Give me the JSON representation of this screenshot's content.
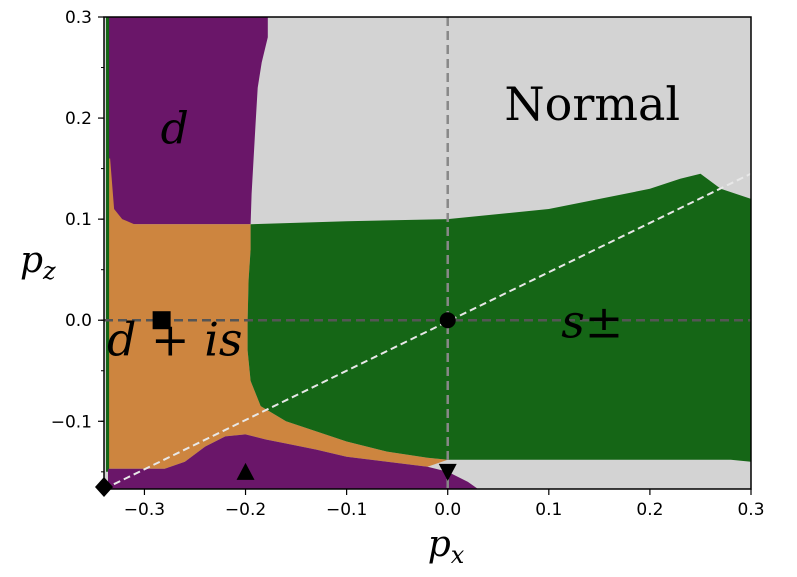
{
  "chart_data": {
    "type": "heatmap",
    "title": "",
    "xlabel": "p",
    "xlabel_subscript": "x",
    "ylabel": "p",
    "ylabel_subscript": "z",
    "xlim": [
      -0.34,
      0.3
    ],
    "ylim": [
      -0.167,
      0.3
    ],
    "xticks": [
      -0.3,
      -0.2,
      -0.1,
      0.0,
      0.1,
      0.2,
      0.3
    ],
    "xtick_labels": [
      "−0.3",
      "−0.2",
      "−0.1",
      "0.0",
      "0.1",
      "0.2",
      "0.3"
    ],
    "yticks": [
      -0.1,
      0.0,
      0.1,
      0.2,
      0.3
    ],
    "ytick_labels": [
      "−0.1",
      "0.0",
      "0.1",
      "0.2",
      "0.3"
    ],
    "phases": [
      {
        "name": "Normal",
        "color": "#d3d3d3",
        "label": "Normal",
        "label_at": [
          0.143,
          0.198
        ],
        "region": [
          [
            -0.34,
            0.3
          ],
          [
            0.3,
            0.3
          ],
          [
            0.3,
            -0.167
          ],
          [
            -0.34,
            -0.167
          ]
        ]
      },
      {
        "name": "d",
        "color": "#6a1669",
        "label": "d",
        "label_at": [
          -0.27,
          0.175
        ],
        "region": [
          [
            -0.336,
            0.3
          ],
          [
            -0.178,
            0.3
          ],
          [
            -0.178,
            0.28
          ],
          [
            -0.184,
            0.255
          ],
          [
            -0.188,
            0.23
          ],
          [
            -0.19,
            0.195
          ],
          [
            -0.192,
            0.16
          ],
          [
            -0.194,
            0.125
          ],
          [
            -0.195,
            0.095
          ],
          [
            -0.336,
            0.095
          ]
        ]
      },
      {
        "name": "d+is",
        "color": "#cd853f",
        "label": "d + is",
        "label_at": [
          -0.27,
          -0.035
        ],
        "region": [
          [
            -0.336,
            0.16
          ],
          [
            -0.334,
            0.16
          ],
          [
            -0.33,
            0.11
          ],
          [
            -0.322,
            0.1
          ],
          [
            -0.31,
            0.095
          ],
          [
            -0.195,
            0.095
          ],
          [
            -0.195,
            0.07
          ],
          [
            -0.197,
            0.04
          ],
          [
            -0.198,
            0.0
          ],
          [
            -0.198,
            -0.03
          ],
          [
            -0.195,
            -0.06
          ],
          [
            -0.185,
            -0.085
          ],
          [
            -0.16,
            -0.1
          ],
          [
            -0.13,
            -0.11
          ],
          [
            -0.1,
            -0.12
          ],
          [
            -0.06,
            -0.13
          ],
          [
            -0.02,
            -0.136
          ],
          [
            0.0,
            -0.138
          ],
          [
            -0.02,
            -0.145
          ],
          [
            -0.06,
            -0.14
          ],
          [
            -0.1,
            -0.135
          ],
          [
            -0.13,
            -0.128
          ],
          [
            -0.16,
            -0.122
          ],
          [
            -0.18,
            -0.118
          ],
          [
            -0.2,
            -0.113
          ],
          [
            -0.22,
            -0.115
          ],
          [
            -0.24,
            -0.125
          ],
          [
            -0.26,
            -0.14
          ],
          [
            -0.28,
            -0.147
          ],
          [
            -0.336,
            -0.147
          ]
        ]
      },
      {
        "name": "s-pm",
        "color": "#156616",
        "label": "s±",
        "label_at": [
          0.143,
          -0.017
        ],
        "region": [
          [
            -0.338,
            0.3
          ],
          [
            -0.335,
            0.3
          ],
          [
            -0.335,
            -0.15
          ],
          [
            -0.338,
            -0.15
          ]
        ],
        "region_main": [
          [
            -0.195,
            0.095
          ],
          [
            -0.1,
            0.098
          ],
          [
            0.0,
            0.1
          ],
          [
            0.1,
            0.11
          ],
          [
            0.2,
            0.13
          ],
          [
            0.23,
            0.14
          ],
          [
            0.25,
            0.145
          ],
          [
            0.27,
            0.13
          ],
          [
            0.3,
            0.12
          ],
          [
            0.3,
            -0.14
          ],
          [
            0.28,
            -0.138
          ],
          [
            0.0,
            -0.138
          ],
          [
            -0.02,
            -0.136
          ],
          [
            -0.06,
            -0.13
          ],
          [
            -0.1,
            -0.12
          ],
          [
            -0.13,
            -0.11
          ],
          [
            -0.16,
            -0.1
          ],
          [
            -0.185,
            -0.085
          ],
          [
            -0.195,
            -0.06
          ],
          [
            -0.198,
            -0.03
          ],
          [
            -0.198,
            0.0
          ],
          [
            -0.197,
            0.04
          ],
          [
            -0.195,
            0.07
          ]
        ]
      },
      {
        "name": "d-bottom",
        "color": "#6a1669",
        "label": "",
        "region": [
          [
            -0.336,
            -0.147
          ],
          [
            -0.28,
            -0.147
          ],
          [
            -0.26,
            -0.14
          ],
          [
            -0.24,
            -0.125
          ],
          [
            -0.22,
            -0.115
          ],
          [
            -0.2,
            -0.113
          ],
          [
            -0.18,
            -0.118
          ],
          [
            -0.16,
            -0.122
          ],
          [
            -0.13,
            -0.128
          ],
          [
            -0.1,
            -0.135
          ],
          [
            -0.06,
            -0.14
          ],
          [
            -0.02,
            -0.145
          ],
          [
            0.0,
            -0.15
          ],
          [
            0.02,
            -0.16
          ],
          [
            0.03,
            -0.167
          ],
          [
            -0.336,
            -0.167
          ]
        ]
      }
    ],
    "reference_lines": [
      {
        "name": "vertical-dashed",
        "axis": "x",
        "value": 0.0,
        "color": "#888888"
      },
      {
        "name": "horizontal-dashed",
        "axis": "y",
        "value": 0.0,
        "color": "#555555"
      }
    ],
    "diagonal_line": {
      "from": [
        -0.34,
        -0.167
      ],
      "to": [
        0.3,
        0.145
      ],
      "color": "#e8e8e8"
    },
    "markers": [
      {
        "name": "circle-marker",
        "shape": "circle",
        "x": 0.0,
        "y": 0.0
      },
      {
        "name": "square-marker",
        "shape": "square",
        "x": -0.283,
        "y": 0.0
      },
      {
        "name": "triangle-up-marker",
        "shape": "triangle-up",
        "x": -0.2,
        "y": -0.15
      },
      {
        "name": "triangle-down-marker",
        "shape": "triangle-down",
        "x": 0.0,
        "y": -0.15
      },
      {
        "name": "diamond-marker",
        "shape": "diamond",
        "x": -0.34,
        "y": -0.165
      }
    ]
  }
}
